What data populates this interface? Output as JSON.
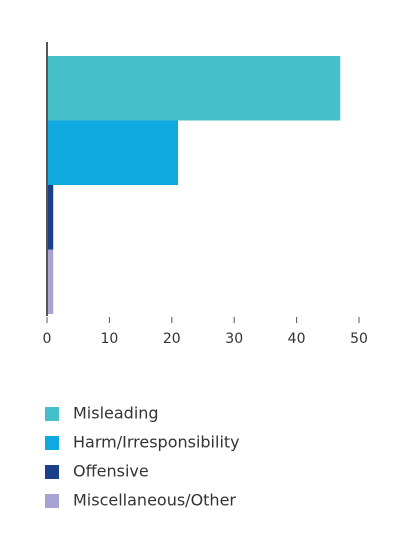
{
  "chart_data": {
    "type": "bar",
    "orientation": "horizontal",
    "categories": [
      "Misleading",
      "Harm/Irresponsibility",
      "Offensive",
      "Miscellaneous/Other"
    ],
    "values": [
      47,
      21,
      1,
      1
    ],
    "colors": [
      "#45bfc9",
      "#0fa9df",
      "#1b3f8b",
      "#a7a3d3"
    ],
    "xlim": [
      0,
      50
    ],
    "xticks": [
      0,
      10,
      20,
      30,
      40,
      50
    ],
    "grid": false,
    "legend": "bottom"
  }
}
